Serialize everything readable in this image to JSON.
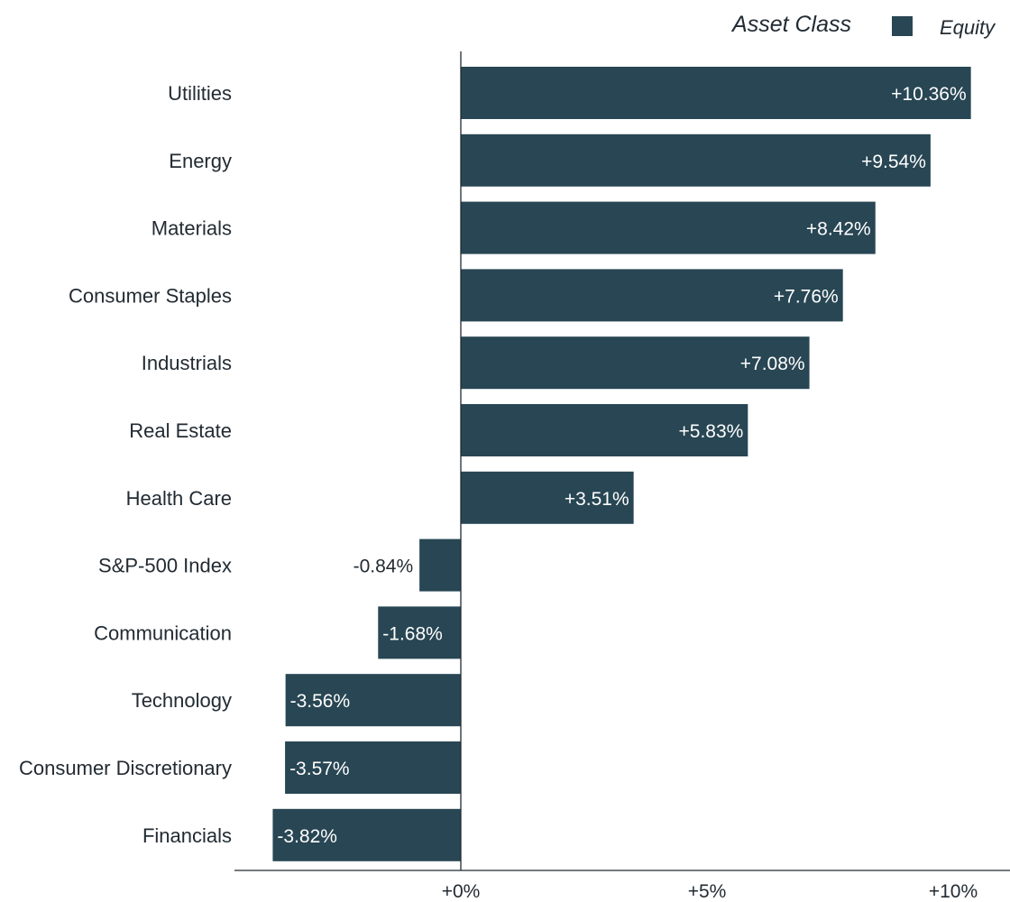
{
  "chart_data": {
    "type": "bar",
    "orientation": "horizontal",
    "title": "",
    "xlabel": "",
    "ylabel": "",
    "categories": [
      "Utilities",
      "Energy",
      "Materials",
      "Consumer Staples",
      "Industrials",
      "Real Estate",
      "Health Care",
      "S&P-500 Index",
      "Communication",
      "Technology",
      "Consumer Discretionary",
      "Financials"
    ],
    "series": [
      {
        "name": "Equity",
        "values": [
          10.36,
          9.54,
          8.42,
          7.76,
          7.08,
          5.83,
          3.51,
          -0.84,
          -1.68,
          -3.56,
          -3.57,
          -3.82
        ],
        "labels": [
          "+10.36%",
          "+9.54%",
          "+8.42%",
          "+7.76%",
          "+7.08%",
          "+5.83%",
          "+3.51%",
          "-0.84%",
          "-1.68%",
          "-3.56%",
          "-3.57%",
          "-3.82%"
        ]
      }
    ],
    "xlim": [
      -4.6,
      11
    ],
    "x_ticks": [
      {
        "value": 0,
        "label": "+0%"
      },
      {
        "value": 5,
        "label": "+5%"
      },
      {
        "value": 10,
        "label": "+10%"
      }
    ],
    "legend": {
      "title": "Asset Class",
      "position": "top-right",
      "entries": [
        {
          "label": "Equity",
          "color": "#284653"
        }
      ]
    },
    "grid": false
  },
  "colors": {
    "bar": "#284653",
    "axis": "#222b33",
    "label_inside": "#ffffff",
    "label_outside": "#222b33"
  }
}
